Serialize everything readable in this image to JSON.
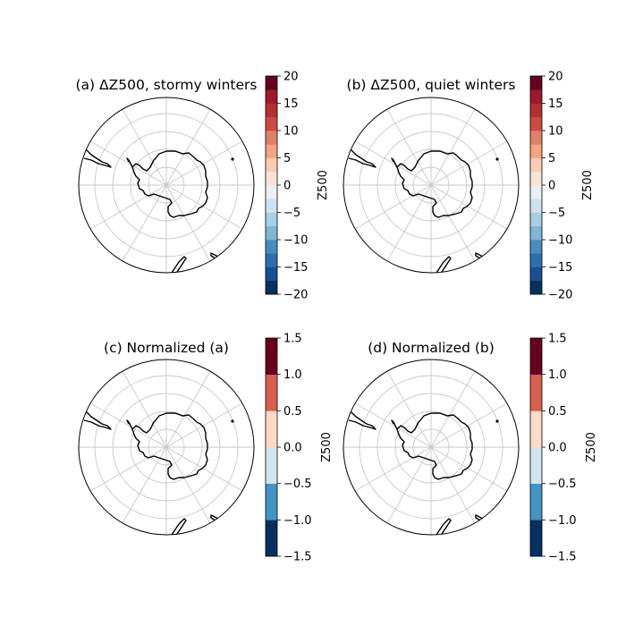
{
  "figure": {
    "type": "map",
    "projection": "south-polar-stereographic",
    "gridlines": true
  },
  "panels": [
    {
      "title": "(a) ΔZ500, stormy winters",
      "colorbar": {
        "label": "Z500",
        "ticks": [
          "20",
          "15",
          "10",
          "5",
          "0",
          "−5",
          "−10",
          "−15",
          "−20"
        ],
        "range": [
          -20,
          20
        ],
        "levels": 16,
        "colors": [
          "#053061",
          "#1a4f8d",
          "#2e6ead",
          "#4a8bbf",
          "#7eb6d6",
          "#a8cfe3",
          "#cfe3ef",
          "#e8f0f5",
          "#fbe4d6",
          "#f9cdb5",
          "#f3a481",
          "#e07f63",
          "#cc4c44",
          "#b42f32",
          "#9c1a2c",
          "#67001f"
        ]
      }
    },
    {
      "title": "(b) ΔZ500, quiet winters",
      "colorbar": {
        "label": "Z500",
        "ticks": [
          "20",
          "15",
          "10",
          "5",
          "0",
          "−5",
          "−10",
          "−15",
          "−20"
        ],
        "range": [
          -20,
          20
        ],
        "levels": 16,
        "colors": [
          "#053061",
          "#1a4f8d",
          "#2e6ead",
          "#4a8bbf",
          "#7eb6d6",
          "#a8cfe3",
          "#cfe3ef",
          "#e8f0f5",
          "#fbe4d6",
          "#f9cdb5",
          "#f3a481",
          "#e07f63",
          "#cc4c44",
          "#b42f32",
          "#9c1a2c",
          "#67001f"
        ]
      }
    },
    {
      "title": "(c) Normalized (a)",
      "colorbar": {
        "label": "Z500",
        "ticks": [
          "1.5",
          "1.0",
          "0.5",
          "0.0",
          "−0.5",
          "−1.0",
          "−1.5"
        ],
        "range": [
          -1.5,
          1.5
        ],
        "levels": 6,
        "colors": [
          "#053061",
          "#4393c3",
          "#d1e5f0",
          "#fbdac7",
          "#d6604d",
          "#67001f"
        ]
      }
    },
    {
      "title": "(d) Normalized (b)",
      "colorbar": {
        "label": "Z500",
        "ticks": [
          "1.5",
          "1.0",
          "0.5",
          "0.0",
          "−0.5",
          "−1.0",
          "−1.5"
        ],
        "range": [
          -1.5,
          1.5
        ],
        "levels": 6,
        "colors": [
          "#053061",
          "#4393c3",
          "#d1e5f0",
          "#fbdac7",
          "#d6604d",
          "#67001f"
        ]
      }
    }
  ]
}
